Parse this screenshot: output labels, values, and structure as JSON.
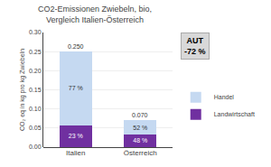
{
  "chart_data": {
    "type": "bar",
    "stacked": true,
    "title": "CO2-Emissionen Zwiebeln, bio,\nVergleich Italien-Österreich",
    "ylabel": "CO₂ eq in kg pro kg Zwiebeln",
    "categories": [
      "Italien",
      "Österreich"
    ],
    "series": [
      {
        "name": "Landwirtschaft",
        "color": "#7030a0",
        "values": [
          0.0575,
          0.0336
        ],
        "percent": [
          23,
          48
        ],
        "percent_labels": [
          "23 %",
          "48 %"
        ]
      },
      {
        "name": "Handel",
        "color": "#c5d9f1",
        "values": [
          0.1925,
          0.0364
        ],
        "percent": [
          77,
          52
        ],
        "percent_labels": [
          "77 %",
          "52 %"
        ]
      }
    ],
    "totals": [
      0.25,
      0.07
    ],
    "total_labels": [
      "0.250",
      "0.070"
    ],
    "annotations": [
      "AUT\n-72 %"
    ],
    "ylim": [
      0,
      0.3
    ],
    "yticks": [
      {
        "value": 0,
        "label": "0.00"
      },
      {
        "value": 0.05,
        "label": "0.05"
      },
      {
        "value": 0.1,
        "label": "0.10"
      },
      {
        "value": 0.15,
        "label": "0.15"
      },
      {
        "value": 0.2,
        "label": "0.20"
      },
      {
        "value": 0.25,
        "label": "0.25"
      },
      {
        "value": 0.3,
        "label": "0.30"
      }
    ],
    "grid": true,
    "legend": "right"
  }
}
